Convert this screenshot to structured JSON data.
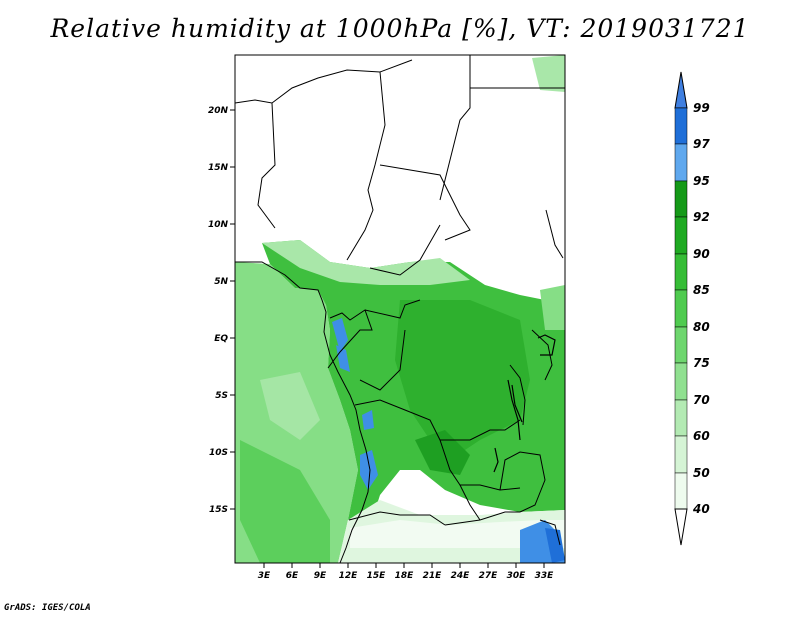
{
  "title": "Relative humidity at 1000hPa [%], VT: 2019031721",
  "credit": "GrADS: IGES/COLA",
  "map": {
    "lat_labels": [
      "20N",
      "15N",
      "10N",
      "5N",
      "EQ",
      "5S",
      "10S",
      "15S"
    ],
    "lon_labels": [
      "3E",
      "6E",
      "9E",
      "12E",
      "15E",
      "18E",
      "21E",
      "24E",
      "27E",
      "30E",
      "33E"
    ]
  },
  "colorbar": {
    "labels": [
      "99",
      "97",
      "95",
      "92",
      "90",
      "85",
      "80",
      "75",
      "70",
      "60",
      "50",
      "40"
    ],
    "colors": [
      "#3f7fe0",
      "#1f6fd8",
      "#2f8fe8",
      "#5fa8ee",
      "#159a18",
      "#1faa22",
      "#36bd36",
      "#4fcb4f",
      "#6ed66e",
      "#90e090",
      "#b3eab3",
      "#d5f4d5",
      "#eefbee",
      "#ffffff"
    ]
  }
}
